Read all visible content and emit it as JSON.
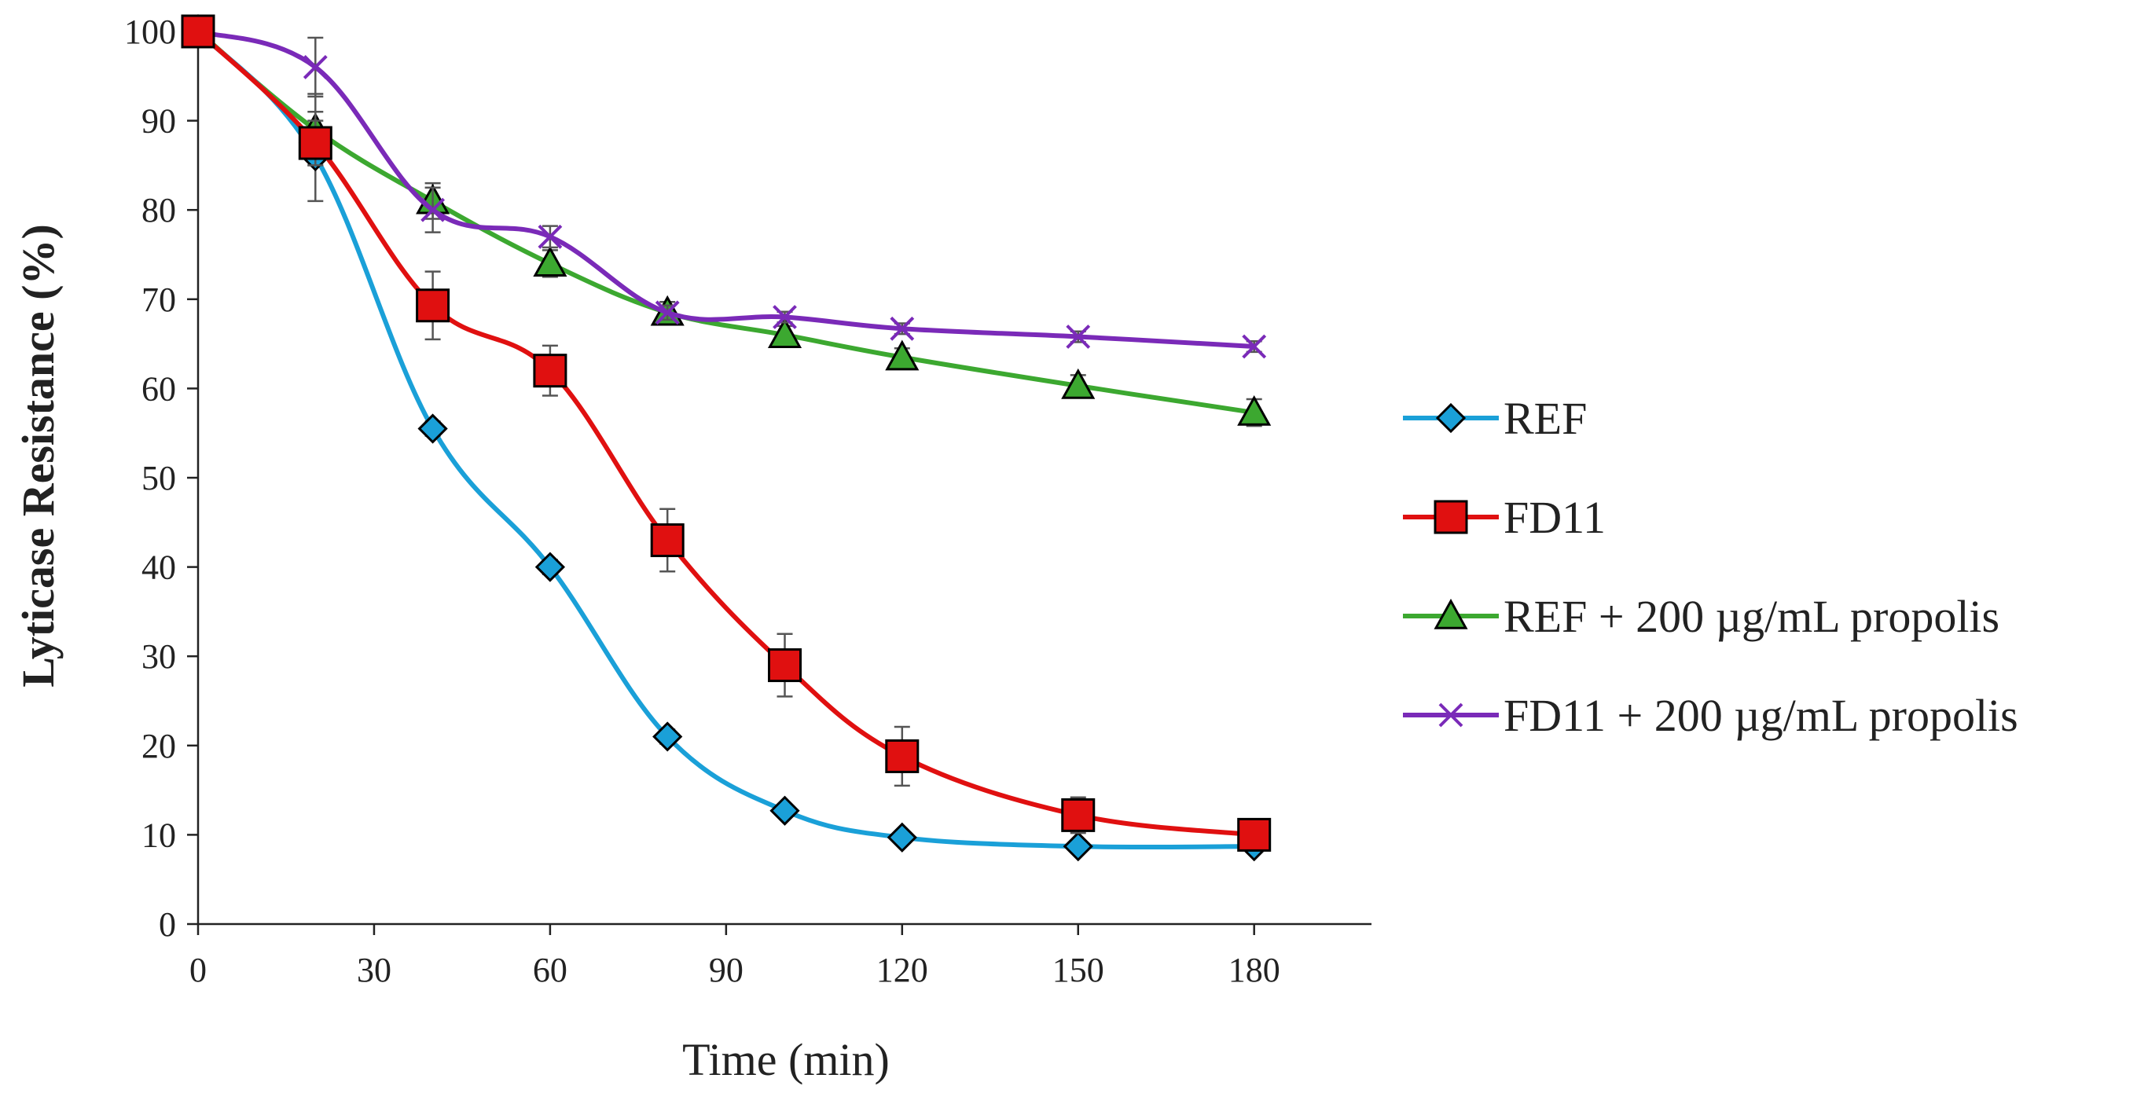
{
  "chart_data": {
    "type": "line",
    "title": "",
    "xlabel": "Time (min)",
    "ylabel": "Lyticase Resistance (%)",
    "xlim": [
      0,
      200
    ],
    "ylim": [
      0,
      100
    ],
    "xticks": [
      0,
      30,
      60,
      90,
      120,
      150,
      180
    ],
    "yticks": [
      0,
      10,
      20,
      30,
      40,
      50,
      60,
      70,
      80,
      90,
      100
    ],
    "grid": false,
    "legend_position": "right",
    "series": [
      {
        "name": "REF",
        "color": "#1aa0d8",
        "marker": "diamond",
        "x": [
          0,
          20,
          40,
          60,
          80,
          100,
          120,
          150,
          180
        ],
        "y": [
          100,
          86,
          55.5,
          40,
          21,
          12.7,
          9.7,
          8.7,
          8.7
        ],
        "err": [
          0,
          5,
          0.8,
          0.8,
          0.8,
          0.6,
          0.5,
          0.5,
          0.5
        ]
      },
      {
        "name": "FD11",
        "color": "#e01010",
        "marker": "square",
        "x": [
          0,
          20,
          40,
          60,
          80,
          100,
          120,
          150,
          180
        ],
        "y": [
          100,
          87.5,
          69.3,
          62,
          43,
          29,
          18.8,
          12.2,
          10
        ],
        "err": [
          0,
          2.5,
          3.8,
          2.8,
          3.5,
          3.5,
          3.3,
          2,
          0.5
        ]
      },
      {
        "name": "REF + 200 µg/mL propolis",
        "color": "#3ca830",
        "marker": "triangle",
        "x": [
          0,
          20,
          40,
          60,
          80,
          100,
          120,
          150,
          180
        ],
        "y": [
          100,
          89,
          81,
          74,
          68.5,
          66,
          63.5,
          60.3,
          57.3
        ],
        "err": [
          0,
          4,
          2,
          1.5,
          1.2,
          1,
          1,
          1.2,
          1.5
        ]
      },
      {
        "name": "FD11 + 200 µg/mL propolis",
        "color": "#7a2ab8",
        "marker": "x",
        "x": [
          0,
          20,
          40,
          60,
          80,
          100,
          120,
          150,
          180
        ],
        "y": [
          100,
          96,
          80,
          77,
          68.5,
          68,
          66.7,
          65.8,
          64.7
        ],
        "err": [
          0,
          3.3,
          2.5,
          1.2,
          0.8,
          0.6,
          0.6,
          0.6,
          0.6
        ]
      }
    ]
  }
}
